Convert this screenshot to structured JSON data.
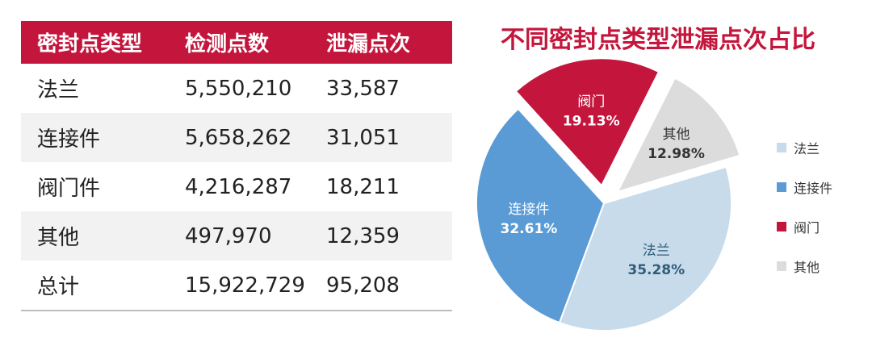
{
  "table": {
    "headers": [
      "密封点类型",
      "检测点数",
      "泄漏点次"
    ],
    "rows": [
      [
        "法兰",
        "5,550,210",
        "33,587"
      ],
      [
        "连接件",
        "5,658,262",
        "31,051"
      ],
      [
        "阀门件",
        "4,216,287",
        "18,211"
      ],
      [
        "其他",
        "497,970",
        "12,359"
      ],
      [
        "总计",
        "15,922,729",
        "95,208"
      ]
    ]
  },
  "colors": {
    "accent": "#c4163c",
    "flange": "#c7dbeb",
    "connector": "#5b9bd5",
    "valve": "#c4163c",
    "other": "#dcdcdc"
  },
  "chart_data": {
    "type": "pie",
    "title": "不同密封点类型泄漏点次占比",
    "legend_position": "right",
    "slices": [
      {
        "name": "法兰",
        "percent_label": "35.28%",
        "value": 35.28,
        "color": "#c7dbeb",
        "label_color": "#2f5d7a",
        "exploded": false
      },
      {
        "name": "连接件",
        "percent_label": "32.61%",
        "value": 32.61,
        "color": "#5b9bd5",
        "label_color": "#ffffff",
        "exploded": false
      },
      {
        "name": "阀门",
        "percent_label": "19.13%",
        "value": 19.13,
        "color": "#c4163c",
        "label_color": "#ffffff",
        "exploded": true
      },
      {
        "name": "其他",
        "percent_label": "12.98%",
        "value": 12.98,
        "color": "#dcdcdc",
        "label_color": "#333333",
        "exploded": true
      }
    ],
    "legend": [
      "法兰",
      "连接件",
      "阀门",
      "其他"
    ]
  }
}
